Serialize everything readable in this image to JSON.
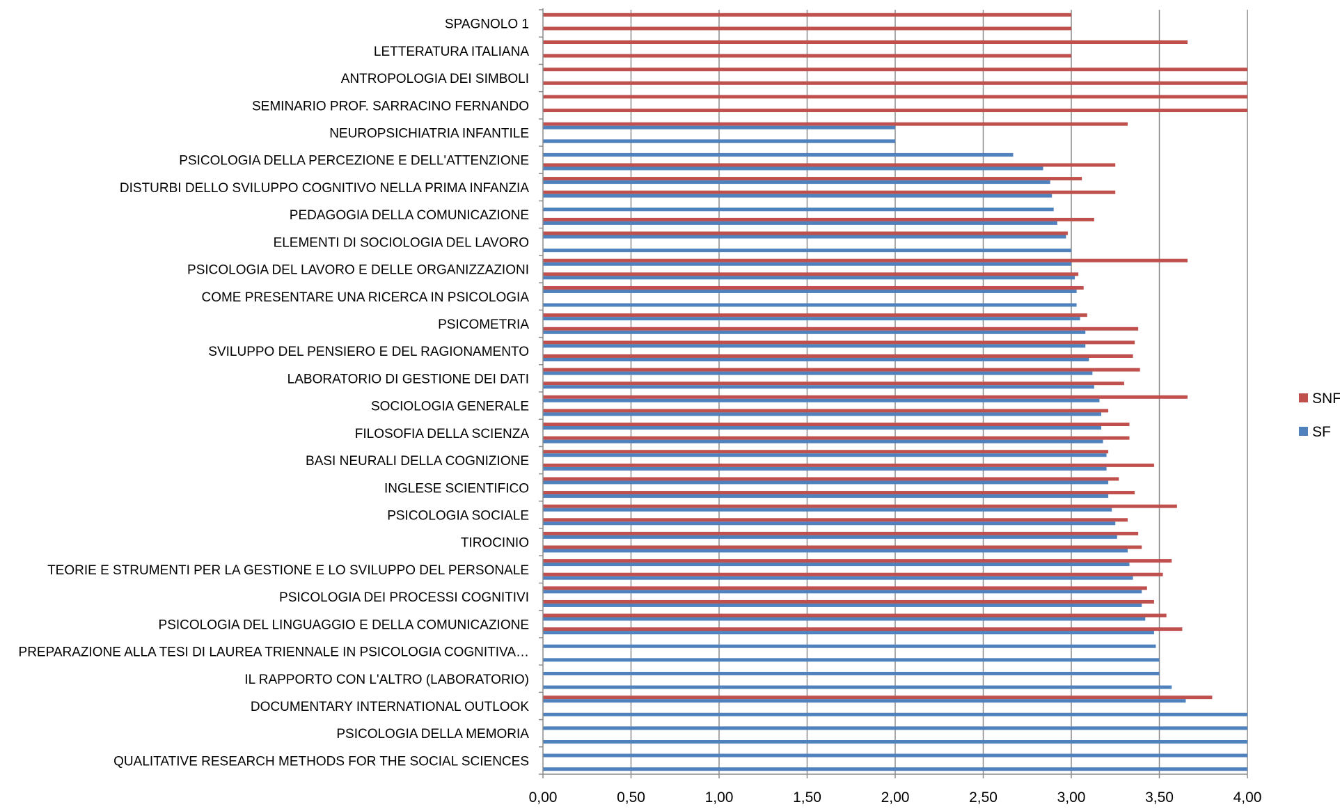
{
  "chart_data": {
    "type": "bar",
    "orientation": "horizontal",
    "xlim": [
      0,
      4
    ],
    "x_ticks": [
      "0,00",
      "0,50",
      "1,00",
      "1,50",
      "2,00",
      "2,50",
      "3,00",
      "3,50",
      "4,00"
    ],
    "x_tick_values": [
      0,
      0.5,
      1,
      1.5,
      2,
      2.5,
      3,
      3.5,
      4
    ],
    "grid": "vertical",
    "legend_position": "right",
    "colors": {
      "SNF": "#C0504D",
      "SF": "#4F81BD",
      "grid": "#8C8C8C"
    },
    "category_labels": [
      "SPAGNOLO 1",
      "LETTERATURA ITALIANA",
      "ANTROPOLOGIA DEI SIMBOLI",
      "SEMINARIO PROF. SARRACINO FERNANDO",
      "NEUROPSICHIATRIA INFANTILE",
      "PSICOLOGIA DELLA PERCEZIONE E DELL'ATTENZIONE",
      "DISTURBI DELLO SVILUPPO COGNITIVO NELLA PRIMA INFANZIA",
      "PEDAGOGIA DELLA COMUNICAZIONE",
      "ELEMENTI DI SOCIOLOGIA DEL LAVORO",
      "PSICOLOGIA DEL LAVORO E DELLE ORGANIZZAZIONI",
      "COME PRESENTARE UNA RICERCA IN PSICOLOGIA",
      "PSICOMETRIA",
      "SVILUPPO DEL PENSIERO E DEL RAGIONAMENTO",
      "LABORATORIO DI GESTIONE DEI DATI",
      "SOCIOLOGIA GENERALE",
      "FILOSOFIA DELLA SCIENZA",
      "BASI NEURALI DELLA COGNIZIONE",
      "INGLESE SCIENTIFICO",
      "PSICOLOGIA SOCIALE",
      "TIROCINIO",
      "TEORIE E STRUMENTI PER LA GESTIONE E LO SVILUPPO DEL PERSONALE",
      "PSICOLOGIA DEI PROCESSI COGNITIVI",
      "PSICOLOGIA DEL LINGUAGGIO E DELLA COMUNICAZIONE",
      "PREPARAZIONE ALLA TESI DI LAUREA TRIENNALE IN PSICOLOGIA COGNITIVA…",
      "IL RAPPORTO CON L'ALTRO (LABORATORIO)",
      "DOCUMENTARY INTERNATIONAL OUTLOOK",
      "PSICOLOGIA DELLA MEMORIA",
      "QUALITATIVE RESEARCH METHODS FOR THE SOCIAL SCIENCES"
    ],
    "series": [
      {
        "name": "SNF",
        "values": [
          3.0,
          3.0,
          3.66,
          3.0,
          4.0,
          4.0,
          4.0,
          4.0,
          3.32,
          null,
          null,
          3.25,
          3.06,
          3.25,
          null,
          3.13,
          2.98,
          null,
          3.66,
          3.04,
          3.07,
          null,
          3.09,
          3.38,
          3.36,
          3.35,
          3.39,
          3.3,
          3.66,
          3.21,
          3.33,
          3.33,
          3.21,
          3.47,
          3.27,
          3.36,
          3.6,
          3.32,
          3.38,
          3.4,
          3.57,
          3.52,
          3.43,
          3.47,
          3.54,
          3.63,
          null,
          null,
          null,
          null,
          3.8,
          null,
          null,
          null,
          null,
          null
        ]
      },
      {
        "name": "SF",
        "values": [
          null,
          null,
          null,
          null,
          null,
          null,
          null,
          null,
          2.0,
          2.0,
          2.67,
          2.84,
          2.88,
          2.89,
          2.9,
          2.92,
          2.97,
          3.0,
          3.0,
          3.02,
          3.03,
          3.03,
          3.05,
          3.08,
          3.08,
          3.1,
          3.12,
          3.13,
          3.16,
          3.17,
          3.17,
          3.18,
          3.2,
          3.2,
          3.21,
          3.21,
          3.23,
          3.25,
          3.26,
          3.32,
          3.33,
          3.35,
          3.4,
          3.4,
          3.42,
          3.47,
          3.48,
          3.5,
          3.5,
          3.57,
          3.65,
          4.0,
          4.0,
          4.0,
          4.0,
          4.0
        ]
      }
    ]
  }
}
